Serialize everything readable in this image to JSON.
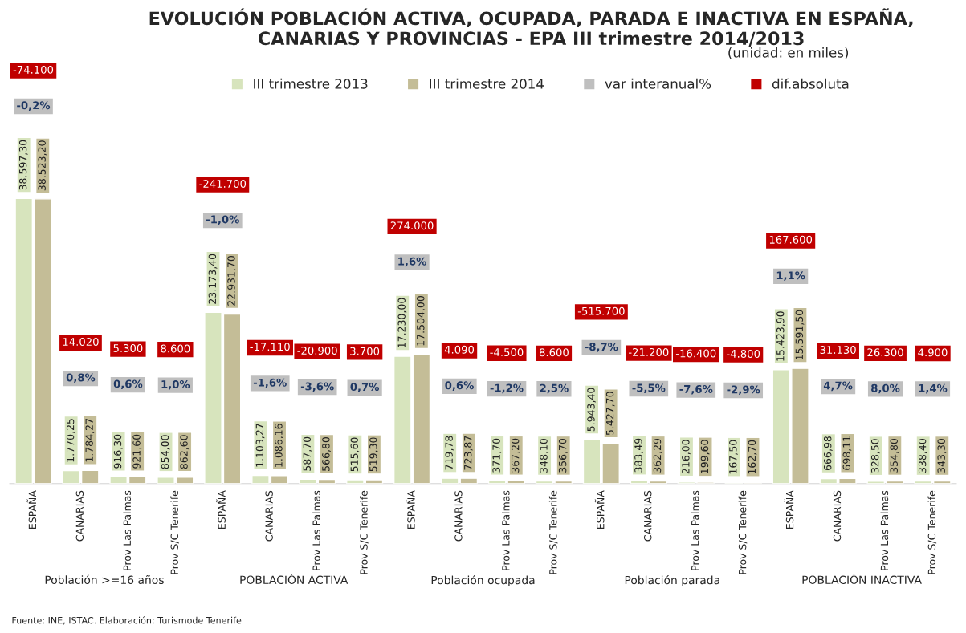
{
  "chart_data": {
    "type": "bar",
    "title": "EVOLUCIÓN POBLACIÓN ACTIVA, OCUPADA, PARADA E INACTIVA EN ESPAÑA,\nCANARIAS Y PROVINCIAS - EPA III trimestre 2014/2013",
    "subtitle": "(unidad: en miles)",
    "categories": [
      "ESPAÑA",
      "CANARIAS",
      "Prov Las Palmas",
      "Prov S/C Tenerife",
      "ESPAÑA",
      "CANARIAS",
      "Prov Las Palmas",
      "Prov S/C Tenerife",
      "ESPAÑA",
      "CANARIAS",
      "Prov Las Palmas",
      "Prov S/C Tenerife",
      "ESPAÑA",
      "CANARIAS",
      "Prov Las Palmas",
      "Prov S/C Tenerife",
      "ESPAÑA",
      "CANARIAS",
      "Prov Las Palmas",
      "Prov S/C Tenerife"
    ],
    "series": [
      {
        "name": "III trimestre 2013",
        "color": "#d7e4bd",
        "values": [
          38597.3,
          1770.25,
          916.3,
          854.0,
          23173.4,
          1103.27,
          587.7,
          515.6,
          17230.0,
          719.78,
          371.7,
          348.1,
          5943.4,
          383.49,
          216.0,
          167.5,
          15423.9,
          666.98,
          328.5,
          338.4
        ],
        "value_labels": [
          "38.597,30",
          "1.770,25",
          "916,30",
          "854,00",
          "23.173,40",
          "1.103,27",
          "587,70",
          "515,60",
          "17.230,00",
          "719,78",
          "371,70",
          "348,10",
          "5.943,40",
          "383,49",
          "216,00",
          "167,50",
          "15.423,90",
          "666,98",
          "328,50",
          "338,40"
        ]
      },
      {
        "name": "III trimestre 2014",
        "color": "#c4bd97",
        "values": [
          38523.2,
          1784.27,
          921.6,
          862.6,
          22931.7,
          1086.16,
          566.8,
          519.3,
          17504.0,
          723.87,
          367.2,
          356.7,
          5427.7,
          362.29,
          199.6,
          162.7,
          15591.5,
          698.11,
          354.8,
          343.3
        ],
        "value_labels": [
          "38.523,20",
          "1.784,27",
          "921,60",
          "862,60",
          "22.931,70",
          "1.086,16",
          "566,80",
          "519,30",
          "17.504,00",
          "723,87",
          "367,20",
          "356,70",
          "5.427,70",
          "362,29",
          "199,60",
          "162,70",
          "15.591,50",
          "698,11",
          "354,80",
          "343,30"
        ]
      },
      {
        "name": "var interanual%",
        "color": "#bfbfbf",
        "values": [
          null,
          null,
          null,
          null,
          null,
          null,
          null,
          null,
          null,
          null,
          null,
          null,
          null,
          null,
          null,
          null,
          null,
          null,
          null,
          null
        ],
        "value_labels": [
          "-0,2%",
          "0,8%",
          "0,6%",
          "1,0%",
          "-1,0%",
          "-1,6%",
          "-3,6%",
          "0,7%",
          "1,6%",
          "0,6%",
          "-1,2%",
          "2,5%",
          "-8,7%",
          "-5,5%",
          "-7,6%",
          "-2,9%",
          "1,1%",
          "4,7%",
          "8,0%",
          "1,4%"
        ]
      },
      {
        "name": "dif.absoluta",
        "color": "#c00000",
        "values": [
          null,
          null,
          null,
          null,
          null,
          null,
          null,
          null,
          null,
          null,
          null,
          null,
          null,
          null,
          null,
          null,
          null,
          null,
          null,
          null
        ],
        "value_labels": [
          "-74.100",
          "14.020",
          "5.300",
          "8.600",
          "-241.700",
          "-17.110",
          "-20.900",
          "3.700",
          "274.000",
          "4.090",
          "-4.500",
          "8.600",
          "-515.700",
          "-21.200",
          "-16.400",
          "-4.800",
          "167.600",
          "31.130",
          "26.300",
          "4.900"
        ]
      }
    ],
    "legend": "top",
    "annotations": [
      "Población >=16 años",
      "POBLACIÓN ACTIVA",
      "Población ocupada",
      "Población parada",
      "POBLACIÓN INACTIVA",
      "Fuente: INE, ISTAC. Elaboración: Turismode Tenerife"
    ]
  }
}
